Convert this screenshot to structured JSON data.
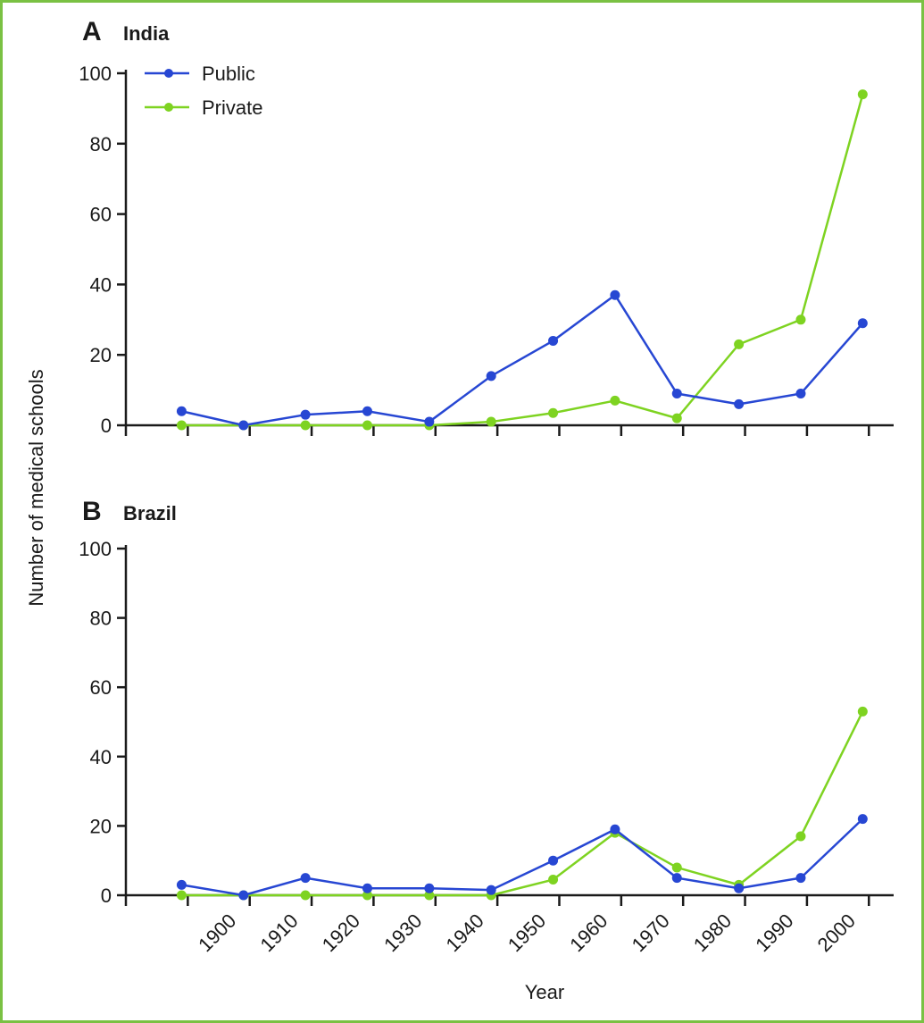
{
  "colors": {
    "public": "#2747d3",
    "private": "#7ed321",
    "frame": "#7ac143",
    "axis": "#1a1a1a"
  },
  "chart_data": {
    "type": "line",
    "ylabel": "Number of medical schools",
    "xlabel": "Year",
    "ylim": [
      0,
      100
    ],
    "yticks": [
      0,
      20,
      40,
      60,
      80,
      100
    ],
    "legend": {
      "placement": "top-left",
      "entries": [
        "Public",
        "Private"
      ]
    },
    "panels": [
      {
        "letter": "A",
        "title": "India",
        "x": [
          1890,
          1900,
          1910,
          1920,
          1930,
          1940,
          1950,
          1960,
          1970,
          1980,
          1990,
          2000
        ],
        "series": [
          {
            "name": "Public",
            "values": [
              4,
              0,
              3,
              4,
              1,
              14,
              24,
              37,
              9,
              6,
              9,
              29
            ]
          },
          {
            "name": "Private",
            "values": [
              0,
              0,
              0,
              0,
              0,
              1,
              3.5,
              7,
              2,
              23,
              30,
              94
            ]
          }
        ]
      },
      {
        "letter": "B",
        "title": "Brazil",
        "x": [
          1890,
          1900,
          1910,
          1920,
          1930,
          1940,
          1950,
          1960,
          1970,
          1980,
          1990,
          2000
        ],
        "series": [
          {
            "name": "Public",
            "values": [
              3,
              0,
              5,
              2,
              2,
              1.5,
              10,
              19,
              5,
              2,
              5,
              22
            ]
          },
          {
            "name": "Private",
            "values": [
              0,
              0,
              0,
              0,
              0,
              0,
              4.5,
              18,
              8,
              3,
              17,
              53
            ]
          }
        ],
        "xtick_labels": [
          "1900",
          "1910",
          "1920",
          "1930",
          "1940",
          "1950",
          "1960",
          "1970",
          "1980",
          "1990",
          "2000"
        ]
      }
    ]
  }
}
